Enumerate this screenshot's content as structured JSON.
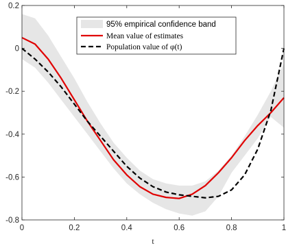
{
  "chart_data": {
    "type": "line",
    "title": "",
    "xlabel": "t",
    "ylabel": "",
    "xlim": [
      0,
      1
    ],
    "ylim": [
      -0.8,
      0.2
    ],
    "xticks": [
      "0",
      "0.2",
      "0.4",
      "0.6",
      "0.8",
      "1"
    ],
    "yticks": [
      "0.2",
      "0",
      "-0.2",
      "-0.4",
      "-0.6",
      "-0.8"
    ],
    "grid": false,
    "legend_position": "top-right",
    "x": [
      0,
      0.05,
      0.1,
      0.15,
      0.2,
      0.25,
      0.3,
      0.35,
      0.4,
      0.45,
      0.5,
      0.55,
      0.6,
      0.65,
      0.7,
      0.75,
      0.8,
      0.85,
      0.9,
      0.95,
      1.0
    ],
    "band": {
      "name": "95% empirical confidence band",
      "color": "#e6e6e6",
      "upper": [
        0.16,
        0.14,
        0.06,
        -0.04,
        -0.14,
        -0.25,
        -0.35,
        -0.44,
        -0.51,
        -0.57,
        -0.61,
        -0.63,
        -0.64,
        -0.64,
        -0.62,
        -0.57,
        -0.5,
        -0.41,
        -0.31,
        -0.2,
        -0.07
      ],
      "lower": [
        -0.05,
        -0.09,
        -0.16,
        -0.24,
        -0.32,
        -0.4,
        -0.48,
        -0.56,
        -0.63,
        -0.68,
        -0.72,
        -0.75,
        -0.77,
        -0.78,
        -0.76,
        -0.69,
        -0.58,
        -0.5,
        -0.42,
        -0.32,
        -0.37
      ]
    },
    "series": [
      {
        "name": "Mean value of estimates",
        "color": "#e00000",
        "style": "solid",
        "values": [
          0.05,
          0.02,
          -0.05,
          -0.14,
          -0.24,
          -0.34,
          -0.43,
          -0.52,
          -0.59,
          -0.645,
          -0.68,
          -0.695,
          -0.7,
          -0.68,
          -0.64,
          -0.58,
          -0.51,
          -0.43,
          -0.36,
          -0.3,
          -0.23
        ]
      },
      {
        "name": "Population value of φ(t)",
        "color": "#000000",
        "style": "dashed",
        "values": [
          0.0,
          -0.05,
          -0.11,
          -0.18,
          -0.26,
          -0.34,
          -0.41,
          -0.48,
          -0.55,
          -0.605,
          -0.645,
          -0.67,
          -0.683,
          -0.69,
          -0.697,
          -0.69,
          -0.66,
          -0.59,
          -0.47,
          -0.29,
          0.0
        ]
      }
    ]
  }
}
